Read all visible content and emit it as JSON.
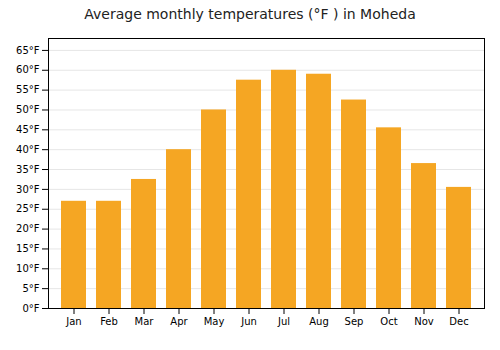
{
  "chart_data": {
    "type": "bar",
    "title": "Average monthly temperatures (°F ) in Moheda",
    "categories": [
      "Jan",
      "Feb",
      "Mar",
      "Apr",
      "May",
      "Jun",
      "Jul",
      "Aug",
      "Sep",
      "Oct",
      "Nov",
      "Dec"
    ],
    "values": [
      27,
      27,
      32.5,
      40,
      50,
      57.5,
      60,
      59,
      52.5,
      45.5,
      36.5,
      30.5
    ],
    "color": "#F5A623",
    "ylim": [
      0,
      68
    ],
    "yticks": [
      {
        "value": 0,
        "label": "0°F"
      },
      {
        "value": 5,
        "label": "5°F"
      },
      {
        "value": 10,
        "label": "10°F"
      },
      {
        "value": 15,
        "label": "15°F"
      },
      {
        "value": 20,
        "label": "20°F"
      },
      {
        "value": 25,
        "label": "25°F"
      },
      {
        "value": 30,
        "label": "30°F"
      },
      {
        "value": 35,
        "label": "35°F"
      },
      {
        "value": 40,
        "label": "40°F"
      },
      {
        "value": 45,
        "label": "45°F"
      },
      {
        "value": 50,
        "label": "50°F"
      },
      {
        "value": 55,
        "label": "55°F"
      },
      {
        "value": 60,
        "label": "60°F"
      },
      {
        "value": 65,
        "label": "65°F"
      }
    ],
    "grid": true
  }
}
